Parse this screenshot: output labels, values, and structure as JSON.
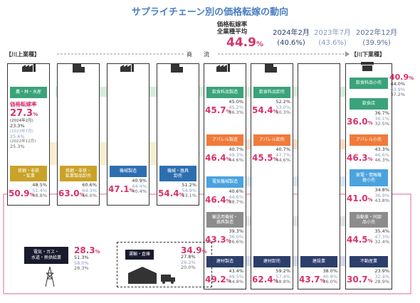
{
  "title": "サプライチェーン別の価格転嫁の動向",
  "legend": {
    "label_line1": "価格転嫁率",
    "label_line2": "全業種平均",
    "main_value": "44.9",
    "pct": "%",
    "periods": [
      {
        "label": "2024年2月",
        "value": "(40.6%)"
      },
      {
        "label": "2023年7月",
        "value": "(43.6%)"
      },
      {
        "label": "2022年12月",
        "value": "(39.9%)"
      }
    ]
  },
  "labels": {
    "upstream": "【川上業種】",
    "downstream": "【川下業種】",
    "flow": "商　流"
  },
  "colors": {
    "green": "#3aa37a",
    "gold": "#c9a227",
    "blue": "#2c6fb0",
    "orange": "#f07b3a",
    "lightblue": "#4aa3df",
    "gray": "#8c8c8c",
    "navy": "#2c3e6b",
    "accent": "#d6336c"
  },
  "chart_data": {
    "type": "table",
    "title": "サプライチェーン別の価格転嫁の動向",
    "periods": [
      "2024年2月",
      "2023年7月",
      "2022年12月"
    ],
    "overall_average": {
      "2024年2月": 44.9,
      "prev": {
        "label_values": [
          40.6,
          43.6,
          39.9
        ]
      }
    },
    "industries": [
      {
        "name": "農・林・水産",
        "values": [
          27.3,
          23.3,
          25.6,
          25.3
        ],
        "value_labels": [
          "27.3",
          "23.3%",
          "25.6%",
          "25.3%"
        ],
        "notes": [
          "(2024年2月)",
          "(2023年7月)",
          "(2022年12月)"
        ],
        "heading": "価格転嫁率"
      },
      {
        "name": "鉄鋼・非鉄・鉱業",
        "values": [
          50.9,
          48.5,
          51.4,
          48.8
        ]
      },
      {
        "name": "鉄鋼・非鉄・鉱業製品卸売",
        "values": [
          63.0,
          60.6,
          64.3,
          66.0
        ]
      },
      {
        "name": "機械製造",
        "values": [
          47.1,
          40.9,
          44.4,
          40.4
        ]
      },
      {
        "name": "機械・器具卸売",
        "values": [
          54.4,
          51.2,
          54.9,
          53.1
        ]
      },
      {
        "name": "飲食料品製造",
        "values": [
          45.7,
          45.0,
          45.2,
          36.3
        ]
      },
      {
        "name": "飲食料品卸売",
        "values": [
          54.4,
          52.2,
          53.0,
          50.3
        ]
      },
      {
        "name": "飲食料品小売",
        "values": [
          40.9,
          44.0,
          43.9,
          37.2
        ]
      },
      {
        "name": "飲食店",
        "values": [
          36.0,
          36.7,
          36.1,
          32.5
        ]
      },
      {
        "name": "アパレル製造",
        "values": [
          46.4,
          40.7,
          49.3,
          44.6
        ]
      },
      {
        "name": "アパレル卸売",
        "values": [
          45.5,
          40.7,
          47.7,
          44.6
        ]
      },
      {
        "name": "アパレル小売",
        "values": [
          46.3,
          43.3,
          46.6,
          46.3
        ]
      },
      {
        "name": "電気機械製造",
        "values": [
          46.4,
          40.6,
          44.6,
          38.7
        ]
      },
      {
        "name": "家電・情報機器小売",
        "values": [
          41.0,
          34.8,
          36.9,
          43.8
        ]
      },
      {
        "name": "輸送用機械・器具製造",
        "values": [
          43.3,
          39.3,
          36.0,
          26.6
        ]
      },
      {
        "name": "自動車・同部品小売",
        "values": [
          44.5,
          35.4,
          47.3,
          32.4
        ]
      },
      {
        "name": "建材製造",
        "values": [
          49.2,
          43.4,
          49.5,
          44.8
        ]
      },
      {
        "name": "建材卸売",
        "values": [
          62.4,
          59.2,
          57.4,
          58.8
        ]
      },
      {
        "name": "建設業",
        "values": [
          43.7,
          38.0,
          40.8,
          36.0
        ]
      },
      {
        "name": "不動産業",
        "values": [
          30.7,
          23.9,
          32.4,
          28.9
        ]
      },
      {
        "name": "電気・ガス・水道・熱供給業",
        "values": [
          28.3,
          51.3,
          58.0,
          28.3
        ]
      },
      {
        "name": "運輸・倉庫",
        "values": [
          34.9,
          27.8,
          26.2,
          20.0
        ]
      }
    ]
  },
  "boxes": [
    {
      "id": "agri",
      "label": "農・林・水産",
      "big": "",
      "a": "",
      "b": "",
      "c": ""
    },
    {
      "id": "steel",
      "label": "鉄鋼・非鉄\n・鉱業",
      "big": "50.9",
      "a": "48.5%",
      "b": "51.4%",
      "c": "48.8%"
    },
    {
      "id": "steelw",
      "label": "鉄鋼・非鉄・\n鉱業製品卸売",
      "big": "63.0",
      "a": "60.6%",
      "b": "64.3%",
      "c": "66.0%"
    },
    {
      "id": "mach",
      "label": "機械製造",
      "big": "47.1",
      "a": "40.9%",
      "b": "44.4%",
      "c": "40.4%"
    },
    {
      "id": "machw",
      "label": "機械・器具\n卸売",
      "big": "54.4",
      "a": "51.2%",
      "b": "54.9%",
      "c": "53.1%"
    },
    {
      "id": "foodm",
      "label": "飲食料品製造",
      "big": "45.7",
      "a": "45.0%",
      "b": "45.2%",
      "c": "36.3%"
    },
    {
      "id": "foodw",
      "label": "飲食料品卸売",
      "big": "54.4",
      "a": "52.2%",
      "b": "53.0%",
      "c": "50.3%"
    },
    {
      "id": "foodr",
      "label": "飲食料品小売",
      "big": "40.9",
      "a": "44.0%",
      "b": "43.9%",
      "c": "37.2%"
    },
    {
      "id": "rest",
      "label": "飲食店",
      "big": "36.0",
      "a": "36.7%",
      "b": "36.1%",
      "c": "32.5%"
    },
    {
      "id": "appm",
      "label": "アパレル製造",
      "big": "46.4",
      "a": "40.7%",
      "b": "49.3%",
      "c": "44.6%"
    },
    {
      "id": "appw",
      "label": "アパレル卸売",
      "big": "45.5",
      "a": "40.7%",
      "b": "47.7%",
      "c": "44.6%"
    },
    {
      "id": "appr",
      "label": "アパレル小売",
      "big": "46.3",
      "a": "43.3%",
      "b": "46.6%",
      "c": "46.3%"
    },
    {
      "id": "elec",
      "label": "電気機械製造",
      "big": "46.4",
      "a": "40.6%",
      "b": "44.6%",
      "c": "38.7%"
    },
    {
      "id": "elecr",
      "label": "家電・情報機\n器小売",
      "big": "41.0",
      "a": "34.8%",
      "b": "36.9%",
      "c": "43.8%"
    },
    {
      "id": "trans",
      "label": "輸送用機械・\n器具製造",
      "big": "43.3",
      "a": "39.3%",
      "b": "36.0%",
      "c": "26.6%"
    },
    {
      "id": "auto",
      "label": "自動車・同部\n品小売",
      "big": "44.5",
      "a": "35.4%",
      "b": "47.3%",
      "c": "32.4%"
    },
    {
      "id": "bldm",
      "label": "建材製造",
      "big": "49.2",
      "a": "43.4%",
      "b": "49.5%",
      "c": "44.8%"
    },
    {
      "id": "bldw",
      "label": "建材卸売",
      "big": "62.4",
      "a": "59.2%",
      "b": "57.4%",
      "c": "58.8%"
    },
    {
      "id": "cons",
      "label": "建設業",
      "big": "43.7",
      "a": "38.0%",
      "b": "40.8%",
      "c": "36.0%"
    },
    {
      "id": "real",
      "label": "不動産業",
      "big": "30.7",
      "a": "23.9%",
      "b": "32.4%",
      "c": "28.9%"
    }
  ],
  "agri_detail": {
    "heading": "価格転嫁率",
    "big": "27.3",
    "l1": "(2024年2月)",
    "v2": "23.3%",
    "l2": "(2023年7月)",
    "v3": "25.6%",
    "l3": "(2022年12月)",
    "v4": "25.3%"
  },
  "energy": {
    "label": "電気・ガス・\n水道・熱供給業",
    "big": "28.3",
    "a": "51.3%",
    "b": "58.0%",
    "c": "28.3%"
  },
  "logistics": {
    "label": "運輸・倉庫",
    "big": "34.9",
    "a": "27.8%",
    "b": "26.2%",
    "c": "20.0%"
  },
  "pct": "%"
}
